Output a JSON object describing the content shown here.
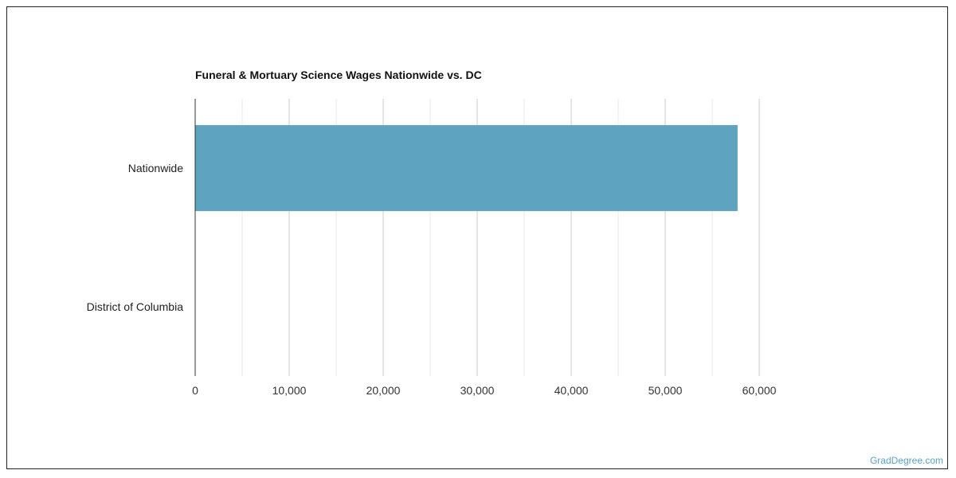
{
  "chart_data": {
    "type": "bar",
    "orientation": "horizontal",
    "title": "Funeral & Mortuary Science Wages Nationwide vs. DC",
    "categories": [
      "Nationwide",
      "District of Columbia"
    ],
    "values": [
      57700,
      0
    ],
    "xlim": [
      0,
      60000
    ],
    "xticks": [
      0,
      10000,
      20000,
      30000,
      40000,
      50000,
      60000
    ],
    "xtick_labels": [
      "0",
      "10,000",
      "20,000",
      "30,000",
      "40,000",
      "50,000",
      "60,000"
    ],
    "xlabel": "",
    "ylabel": "",
    "grid": true,
    "bar_color": "#5ea3c0",
    "grid_major_color": "#cccccc",
    "grid_minor_color": "#e8e8e8"
  },
  "watermark": "GradDegree.com"
}
